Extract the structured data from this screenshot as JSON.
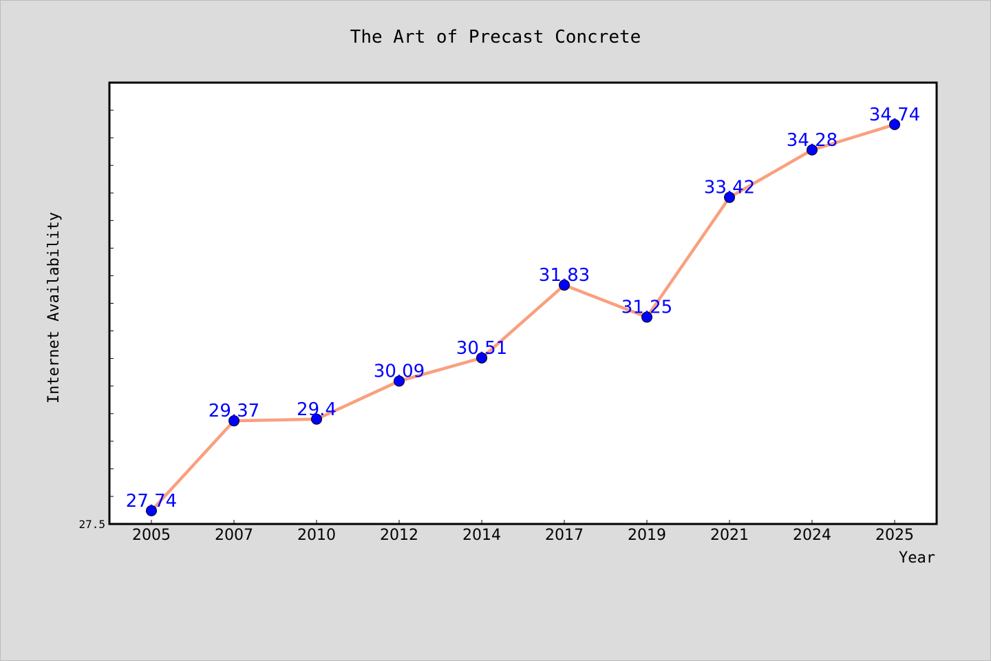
{
  "chart_data": {
    "type": "line",
    "title": "The Art of Precast Concrete",
    "xlabel": "Year",
    "ylabel": "Internet Availability",
    "categories": [
      "2005",
      "2007",
      "2010",
      "2012",
      "2014",
      "2017",
      "2019",
      "2021",
      "2024",
      "2025"
    ],
    "series": [
      {
        "values": [
          27.74,
          29.37,
          29.4,
          30.09,
          30.51,
          31.83,
          31.25,
          33.42,
          34.28,
          34.74
        ],
        "data_labels": [
          "27.74",
          "29.37",
          "29.4",
          "30.09",
          "30.51",
          "31.83",
          "31.25",
          "33.42",
          "34.28",
          "34.74"
        ]
      }
    ],
    "ylim": [
      27.5,
      35.5
    ],
    "yticks_labeled": [
      "27.5"
    ],
    "grid": false,
    "legend": "none",
    "colors": {
      "background": "#dcdcdc",
      "plot_background": "#ffffff",
      "line": "#f9a07e",
      "marker": "#0000ff",
      "data_label": "#0000ff"
    }
  }
}
